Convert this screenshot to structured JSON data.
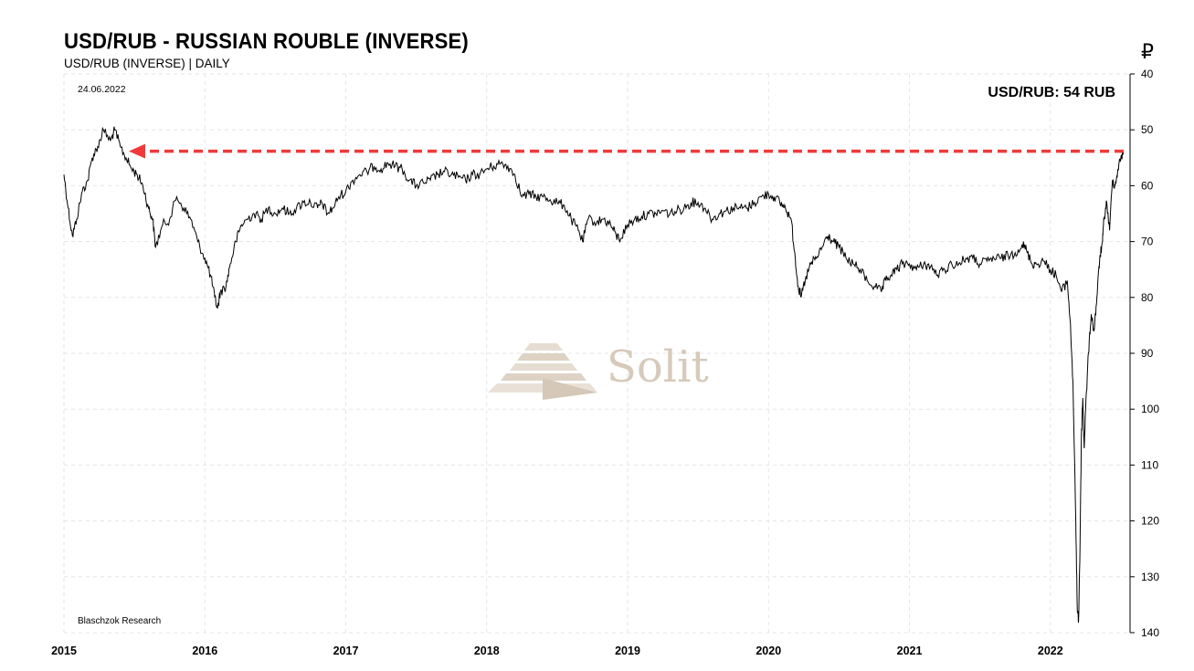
{
  "header": {
    "title": "USD/RUB - RUSSIAN ROUBLE (INVERSE)",
    "subtitle": "USD/RUB (INVERSE) | DAILY"
  },
  "annotations": {
    "date": "24.06.2022",
    "price_label": "USD/RUB: 54 RUB",
    "credit": "Blaschzok Research",
    "currency_symbol": "₽",
    "watermark": "Solit"
  },
  "colors": {
    "line": "#000000",
    "arrow": "#f03a3a",
    "grid": "#e6e6e6",
    "watermark": "#d7cabb"
  },
  "chart_data": {
    "type": "line",
    "title": "USD/RUB - RUSSIAN ROUBLE (INVERSE)",
    "subtitle": "USD/RUB (INVERSE) | DAILY",
    "xlabel": "",
    "ylabel": "",
    "y_axis_inverted": true,
    "ylim": [
      40,
      140
    ],
    "xlim": [
      2015.0,
      2022.52
    ],
    "y_ticks": [
      40,
      50,
      60,
      70,
      80,
      90,
      100,
      110,
      120,
      130,
      140
    ],
    "x_ticks": [
      2015,
      2016,
      2017,
      2018,
      2019,
      2020,
      2021,
      2022
    ],
    "grid": true,
    "series": [
      {
        "values": [
          [
            2015.0,
            58
          ],
          [
            2015.03,
            64
          ],
          [
            2015.06,
            69
          ],
          [
            2015.09,
            66
          ],
          [
            2015.13,
            61
          ],
          [
            2015.17,
            59
          ],
          [
            2015.2,
            55
          ],
          [
            2015.24,
            53
          ],
          [
            2015.28,
            50
          ],
          [
            2015.33,
            52
          ],
          [
            2015.36,
            50
          ],
          [
            2015.4,
            53
          ],
          [
            2015.44,
            55
          ],
          [
            2015.48,
            57
          ],
          [
            2015.52,
            58
          ],
          [
            2015.56,
            60
          ],
          [
            2015.6,
            64
          ],
          [
            2015.63,
            66
          ],
          [
            2015.65,
            71
          ],
          [
            2015.7,
            67
          ],
          [
            2015.75,
            66
          ],
          [
            2015.8,
            62
          ],
          [
            2015.85,
            64
          ],
          [
            2015.9,
            66
          ],
          [
            2015.95,
            70
          ],
          [
            2016.0,
            73
          ],
          [
            2016.04,
            76
          ],
          [
            2016.07,
            80
          ],
          [
            2016.09,
            82
          ],
          [
            2016.11,
            79
          ],
          [
            2016.15,
            78
          ],
          [
            2016.18,
            74
          ],
          [
            2016.22,
            70
          ],
          [
            2016.26,
            67
          ],
          [
            2016.3,
            66
          ],
          [
            2016.35,
            65
          ],
          [
            2016.4,
            66
          ],
          [
            2016.45,
            64
          ],
          [
            2016.5,
            65
          ],
          [
            2016.55,
            64
          ],
          [
            2016.6,
            65
          ],
          [
            2016.65,
            64
          ],
          [
            2016.7,
            63
          ],
          [
            2016.75,
            63
          ],
          [
            2016.8,
            64
          ],
          [
            2016.83,
            63
          ],
          [
            2016.87,
            65
          ],
          [
            2016.91,
            64
          ],
          [
            2016.95,
            62
          ],
          [
            2017.0,
            61
          ],
          [
            2017.05,
            59
          ],
          [
            2017.1,
            58
          ],
          [
            2017.15,
            57.5
          ],
          [
            2017.2,
            56.5
          ],
          [
            2017.25,
            57
          ],
          [
            2017.3,
            56
          ],
          [
            2017.35,
            56.5
          ],
          [
            2017.4,
            57
          ],
          [
            2017.45,
            59
          ],
          [
            2017.5,
            60
          ],
          [
            2017.55,
            59.5
          ],
          [
            2017.6,
            59
          ],
          [
            2017.65,
            58
          ],
          [
            2017.7,
            57.5
          ],
          [
            2017.75,
            58
          ],
          [
            2017.8,
            58.5
          ],
          [
            2017.85,
            59
          ],
          [
            2017.9,
            58
          ],
          [
            2017.95,
            58
          ],
          [
            2018.0,
            57
          ],
          [
            2018.05,
            56.5
          ],
          [
            2018.1,
            56
          ],
          [
            2018.15,
            56.5
          ],
          [
            2018.2,
            58
          ],
          [
            2018.25,
            62
          ],
          [
            2018.3,
            61.5
          ],
          [
            2018.35,
            62
          ],
          [
            2018.4,
            62
          ],
          [
            2018.45,
            62.5
          ],
          [
            2018.5,
            63
          ],
          [
            2018.55,
            63.5
          ],
          [
            2018.6,
            66
          ],
          [
            2018.65,
            68
          ],
          [
            2018.68,
            70
          ],
          [
            2018.72,
            66
          ],
          [
            2018.78,
            66.5
          ],
          [
            2018.83,
            66
          ],
          [
            2018.88,
            67
          ],
          [
            2018.92,
            69
          ],
          [
            2018.95,
            69.5
          ],
          [
            2019.0,
            67
          ],
          [
            2019.05,
            66
          ],
          [
            2019.1,
            65.5
          ],
          [
            2019.15,
            65
          ],
          [
            2019.2,
            65
          ],
          [
            2019.25,
            64.5
          ],
          [
            2019.3,
            65
          ],
          [
            2019.35,
            64.5
          ],
          [
            2019.4,
            64
          ],
          [
            2019.45,
            63
          ],
          [
            2019.5,
            63
          ],
          [
            2019.55,
            64
          ],
          [
            2019.6,
            66
          ],
          [
            2019.65,
            65
          ],
          [
            2019.7,
            64.5
          ],
          [
            2019.75,
            64
          ],
          [
            2019.8,
            64
          ],
          [
            2019.85,
            64
          ],
          [
            2019.9,
            63
          ],
          [
            2019.95,
            62
          ],
          [
            2020.0,
            61.5
          ],
          [
            2020.04,
            62
          ],
          [
            2020.08,
            63
          ],
          [
            2020.12,
            64
          ],
          [
            2020.16,
            66
          ],
          [
            2020.19,
            73
          ],
          [
            2020.21,
            78
          ],
          [
            2020.23,
            80
          ],
          [
            2020.26,
            77
          ],
          [
            2020.3,
            74
          ],
          [
            2020.34,
            73
          ],
          [
            2020.38,
            71
          ],
          [
            2020.42,
            69
          ],
          [
            2020.46,
            70
          ],
          [
            2020.5,
            71
          ],
          [
            2020.55,
            73
          ],
          [
            2020.6,
            74
          ],
          [
            2020.65,
            75
          ],
          [
            2020.7,
            77
          ],
          [
            2020.75,
            78
          ],
          [
            2020.8,
            79
          ],
          [
            2020.83,
            77
          ],
          [
            2020.87,
            76
          ],
          [
            2020.91,
            75
          ],
          [
            2020.95,
            74
          ],
          [
            2021.0,
            74
          ],
          [
            2021.05,
            75
          ],
          [
            2021.1,
            74
          ],
          [
            2021.15,
            74.5
          ],
          [
            2021.2,
            76
          ],
          [
            2021.25,
            75
          ],
          [
            2021.3,
            74
          ],
          [
            2021.35,
            74
          ],
          [
            2021.4,
            73
          ],
          [
            2021.45,
            73
          ],
          [
            2021.5,
            74
          ],
          [
            2021.55,
            73.5
          ],
          [
            2021.6,
            73
          ],
          [
            2021.65,
            73
          ],
          [
            2021.7,
            72.5
          ],
          [
            2021.75,
            72
          ],
          [
            2021.8,
            70.5
          ],
          [
            2021.83,
            71.5
          ],
          [
            2021.87,
            74
          ],
          [
            2021.9,
            74
          ],
          [
            2021.95,
            73.5
          ],
          [
            2022.0,
            75
          ],
          [
            2022.04,
            76
          ],
          [
            2022.08,
            79
          ],
          [
            2022.12,
            77
          ],
          [
            2022.14,
            84
          ],
          [
            2022.16,
            95
          ],
          [
            2022.18,
            120
          ],
          [
            2022.19,
            135
          ],
          [
            2022.2,
            138
          ],
          [
            2022.21,
            125
          ],
          [
            2022.22,
            105
          ],
          [
            2022.23,
            98
          ],
          [
            2022.24,
            107
          ],
          [
            2022.25,
            100
          ],
          [
            2022.27,
            90
          ],
          [
            2022.29,
            83
          ],
          [
            2022.31,
            86
          ],
          [
            2022.33,
            80
          ],
          [
            2022.35,
            73
          ],
          [
            2022.37,
            70
          ],
          [
            2022.38,
            66
          ],
          [
            2022.4,
            63
          ],
          [
            2022.42,
            68
          ],
          [
            2022.44,
            59
          ],
          [
            2022.46,
            60
          ],
          [
            2022.48,
            57
          ],
          [
            2022.5,
            55
          ],
          [
            2022.52,
            54
          ]
        ]
      }
    ],
    "annotations": [
      {
        "type": "arrow",
        "from_x": 2022.52,
        "to_x": 2015.46,
        "y": 54,
        "style": "dashed"
      }
    ]
  }
}
